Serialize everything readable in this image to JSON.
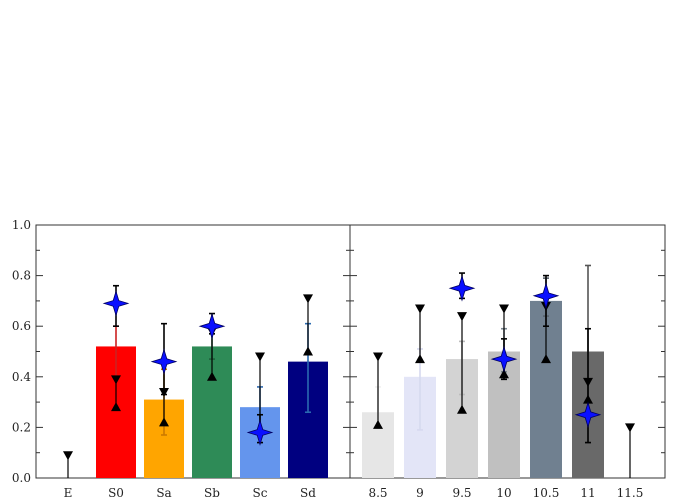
{
  "chart_data": [
    {
      "type": "bar",
      "title": "",
      "xlabel": "",
      "ylabel": "",
      "ylim": [
        0,
        1.0
      ],
      "yticks": [
        "0.0",
        "0.2",
        "0.4",
        "0.6",
        "0.8",
        "1.0"
      ],
      "categories": [
        "E",
        "S0",
        "Sa",
        "Sb",
        "Sc",
        "Sd"
      ],
      "bars": [
        {
          "label": "E",
          "value": null,
          "color": "#ff0000",
          "err_lo": null,
          "err_hi": null,
          "err_color": null
        },
        {
          "label": "S0",
          "value": 0.52,
          "color": "#ff0000",
          "err_lo": 0.4,
          "err_hi": 0.6,
          "err_color": "#cc2222"
        },
        {
          "label": "Sa",
          "value": 0.31,
          "color": "#ffa500",
          "err_lo": 0.17,
          "err_hi": 0.43,
          "err_color": "#cc7a00"
        },
        {
          "label": "Sb",
          "value": 0.52,
          "color": "#2e8b57",
          "err_lo": 0.47,
          "err_hi": 0.57,
          "err_color": "#1f5f3b"
        },
        {
          "label": "Sc",
          "value": 0.28,
          "color": "#6495ed",
          "err_lo": 0.18,
          "err_hi": 0.36,
          "err_color": "#2f6ab0"
        },
        {
          "label": "Sd",
          "value": 0.46,
          "color": "#000080",
          "err_lo": 0.26,
          "err_hi": 0.61,
          "err_color": "#2a6ab0"
        }
      ],
      "triangle_ranges": [
        {
          "category": "E",
          "upper": 0.09,
          "lower": null
        },
        {
          "category": "S0",
          "upper": 0.39,
          "lower": 0.28
        },
        {
          "category": "Sa",
          "upper": 0.34,
          "lower": 0.22
        },
        {
          "category": "Sb",
          "upper": 0.58,
          "lower": 0.4
        },
        {
          "category": "Sc",
          "upper": 0.48,
          "lower": 0.19
        },
        {
          "category": "Sd",
          "upper": 0.71,
          "lower": 0.5
        }
      ],
      "star_points": [
        {
          "category": "S0",
          "value": 0.69,
          "err_lo": 0.6,
          "err_hi": 0.76
        },
        {
          "category": "Sa",
          "value": 0.46,
          "err_lo": 0.33,
          "err_hi": 0.61
        },
        {
          "category": "Sb",
          "value": 0.6,
          "err_lo": 0.57,
          "err_hi": 0.65
        },
        {
          "category": "Sc",
          "value": 0.18,
          "err_lo": 0.14,
          "err_hi": 0.25
        }
      ]
    },
    {
      "type": "bar",
      "title": "",
      "xlabel": "",
      "ylabel": "",
      "ylim": [
        0,
        1.0
      ],
      "categories": [
        "8.5",
        "9",
        "9.5",
        "10",
        "10.5",
        "11",
        "11.5"
      ],
      "bars": [
        {
          "label": "8.5",
          "value": 0.26,
          "color": "#e6e6e6",
          "err_lo": 0.2,
          "err_hi": 0.36,
          "err_color": "#f0f0f0"
        },
        {
          "label": "9",
          "value": 0.4,
          "color": "#e3e5f7",
          "err_lo": 0.19,
          "err_hi": 0.51,
          "err_color": "#d6d9ef"
        },
        {
          "label": "9.5",
          "value": 0.47,
          "color": "#d3d3d3",
          "err_lo": 0.33,
          "err_hi": 0.54,
          "err_color": "#bdbdbd"
        },
        {
          "label": "10",
          "value": 0.5,
          "color": "#c0c0c0",
          "err_lo": 0.42,
          "err_hi": 0.59,
          "err_color": "#7b8791"
        },
        {
          "label": "10.5",
          "value": 0.7,
          "color": "#708090",
          "err_lo": 0.64,
          "err_hi": 0.79,
          "err_color": "#56616b"
        },
        {
          "label": "11",
          "value": 0.5,
          "color": "#696969",
          "err_lo": 0.14,
          "err_hi": 0.84,
          "err_color": "#555555"
        },
        {
          "label": "11.5",
          "value": null,
          "color": "#696969",
          "err_lo": null,
          "err_hi": null,
          "err_color": null
        }
      ],
      "triangle_ranges": [
        {
          "category": "8.5",
          "upper": 0.48,
          "lower": 0.21
        },
        {
          "category": "9",
          "upper": 0.67,
          "lower": 0.47
        },
        {
          "category": "9.5",
          "upper": 0.64,
          "lower": 0.27
        },
        {
          "category": "10",
          "upper": 0.67,
          "lower": 0.41
        },
        {
          "category": "10.5",
          "upper": 0.68,
          "lower": 0.47
        },
        {
          "category": "11",
          "upper": 0.38,
          "lower": 0.31
        },
        {
          "category": "11.5",
          "upper": 0.2,
          "lower": null
        }
      ],
      "star_points": [
        {
          "category": "9.5",
          "value": 0.75,
          "err_lo": 0.71,
          "err_hi": 0.81
        },
        {
          "category": "10",
          "value": 0.47,
          "err_lo": 0.39,
          "err_hi": 0.55
        },
        {
          "category": "10.5",
          "value": 0.72,
          "err_lo": 0.6,
          "err_hi": 0.8
        },
        {
          "category": "11",
          "value": 0.25,
          "err_lo": 0.14,
          "err_hi": 0.59
        }
      ]
    }
  ]
}
